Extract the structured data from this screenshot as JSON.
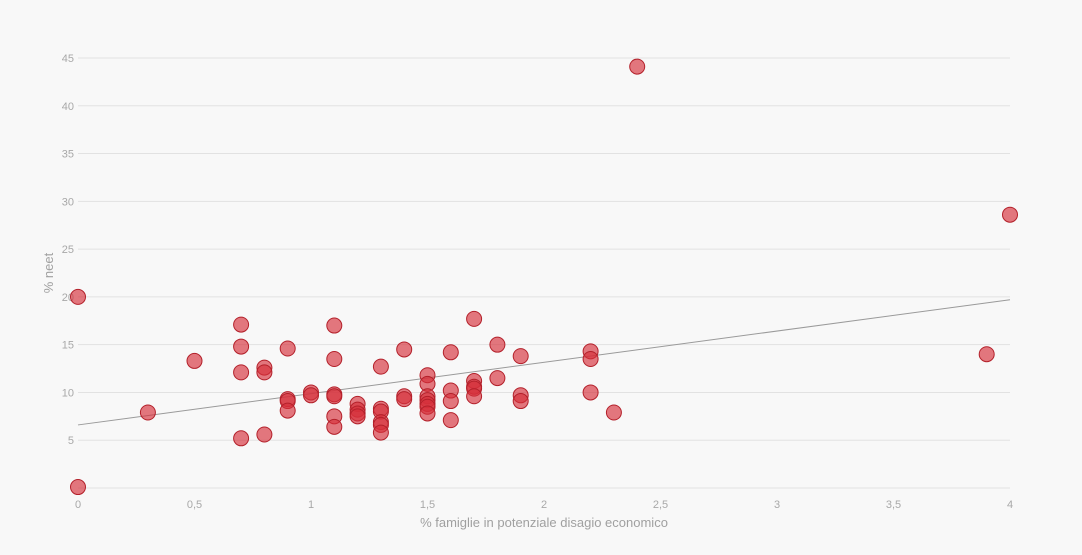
{
  "colors": {
    "point": "#d62f3a",
    "trend": "#9a9a9a",
    "grid": "#e2e2e2"
  },
  "chart_data": {
    "type": "scatter",
    "xlabel": "% famiglie in potenziale disagio economico",
    "ylabel": "% neet",
    "xlim": [
      0,
      4
    ],
    "ylim": [
      0,
      45
    ],
    "x_ticks": [
      0,
      0.5,
      1,
      1.5,
      2,
      2.5,
      3,
      3.5,
      4
    ],
    "x_tick_labels": [
      "0",
      "0,5",
      "1",
      "1,5",
      "2",
      "2,5",
      "3",
      "3,5",
      "4"
    ],
    "y_ticks": [
      5,
      10,
      15,
      20,
      25,
      30,
      35,
      40,
      45
    ],
    "y_tick_labels": [
      "5",
      "10",
      "15",
      "20",
      "25",
      "30",
      "35",
      "40",
      "45"
    ],
    "grid": true,
    "trendline": {
      "x": [
        0,
        4
      ],
      "y": [
        6.6,
        19.7
      ]
    },
    "points": [
      {
        "x": 0,
        "y": 20.0
      },
      {
        "x": 0,
        "y": 0.1
      },
      {
        "x": 0.3,
        "y": 7.9
      },
      {
        "x": 0.5,
        "y": 13.3
      },
      {
        "x": 0.7,
        "y": 17.1
      },
      {
        "x": 0.7,
        "y": 14.8
      },
      {
        "x": 0.7,
        "y": 12.1
      },
      {
        "x": 0.7,
        "y": 5.2
      },
      {
        "x": 0.8,
        "y": 12.6
      },
      {
        "x": 0.8,
        "y": 12.1
      },
      {
        "x": 0.8,
        "y": 5.6
      },
      {
        "x": 0.9,
        "y": 14.6
      },
      {
        "x": 0.9,
        "y": 9.3
      },
      {
        "x": 0.9,
        "y": 9.1
      },
      {
        "x": 0.9,
        "y": 8.1
      },
      {
        "x": 1.0,
        "y": 10.0
      },
      {
        "x": 1.0,
        "y": 9.7
      },
      {
        "x": 1.1,
        "y": 17.0
      },
      {
        "x": 1.1,
        "y": 13.5
      },
      {
        "x": 1.1,
        "y": 9.8
      },
      {
        "x": 1.1,
        "y": 9.6
      },
      {
        "x": 1.1,
        "y": 7.5
      },
      {
        "x": 1.1,
        "y": 6.4
      },
      {
        "x": 1.2,
        "y": 8.8
      },
      {
        "x": 1.2,
        "y": 8.2
      },
      {
        "x": 1.2,
        "y": 7.8
      },
      {
        "x": 1.2,
        "y": 7.5
      },
      {
        "x": 1.3,
        "y": 12.7
      },
      {
        "x": 1.3,
        "y": 8.3
      },
      {
        "x": 1.3,
        "y": 8.0
      },
      {
        "x": 1.3,
        "y": 6.9
      },
      {
        "x": 1.3,
        "y": 6.6
      },
      {
        "x": 1.3,
        "y": 5.8
      },
      {
        "x": 1.4,
        "y": 14.5
      },
      {
        "x": 1.4,
        "y": 9.6
      },
      {
        "x": 1.4,
        "y": 9.3
      },
      {
        "x": 1.5,
        "y": 11.8
      },
      {
        "x": 1.5,
        "y": 10.9
      },
      {
        "x": 1.5,
        "y": 9.6
      },
      {
        "x": 1.5,
        "y": 9.2
      },
      {
        "x": 1.5,
        "y": 8.8
      },
      {
        "x": 1.5,
        "y": 8.5
      },
      {
        "x": 1.5,
        "y": 7.8
      },
      {
        "x": 1.6,
        "y": 14.2
      },
      {
        "x": 1.6,
        "y": 10.2
      },
      {
        "x": 1.6,
        "y": 9.1
      },
      {
        "x": 1.6,
        "y": 7.1
      },
      {
        "x": 1.7,
        "y": 17.7
      },
      {
        "x": 1.7,
        "y": 11.2
      },
      {
        "x": 1.7,
        "y": 10.6
      },
      {
        "x": 1.7,
        "y": 10.4
      },
      {
        "x": 1.7,
        "y": 9.6
      },
      {
        "x": 1.8,
        "y": 15.0
      },
      {
        "x": 1.8,
        "y": 11.5
      },
      {
        "x": 1.9,
        "y": 13.8
      },
      {
        "x": 1.9,
        "y": 9.7
      },
      {
        "x": 1.9,
        "y": 9.1
      },
      {
        "x": 2.2,
        "y": 14.3
      },
      {
        "x": 2.2,
        "y": 13.5
      },
      {
        "x": 2.2,
        "y": 10.0
      },
      {
        "x": 2.3,
        "y": 7.9
      },
      {
        "x": 2.4,
        "y": 44.1
      },
      {
        "x": 3.9,
        "y": 14.0
      },
      {
        "x": 4.0,
        "y": 28.6
      }
    ]
  }
}
